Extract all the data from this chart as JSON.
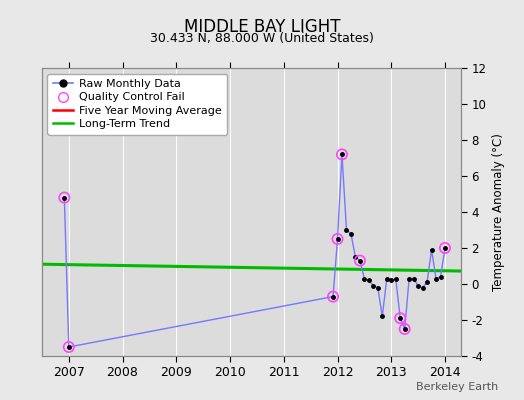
{
  "title": "MIDDLE BAY LIGHT",
  "subtitle": "30.433 N, 88.000 W (United States)",
  "ylabel_right": "Temperature Anomaly (°C)",
  "watermark": "Berkeley Earth",
  "xlim": [
    2006.5,
    2014.3
  ],
  "ylim": [
    -4,
    12
  ],
  "yticks": [
    -4,
    -2,
    0,
    2,
    4,
    6,
    8,
    10,
    12
  ],
  "xticks": [
    2007,
    2008,
    2009,
    2010,
    2011,
    2012,
    2013,
    2014
  ],
  "background_color": "#e8e8e8",
  "plot_background": "#dcdcdc",
  "raw_data_x": [
    2006.917,
    2007.0,
    2011.917,
    2012.0,
    2012.083,
    2012.167,
    2012.25,
    2012.333,
    2012.417,
    2012.5,
    2012.583,
    2012.667,
    2012.75,
    2012.833,
    2012.917,
    2013.0,
    2013.083,
    2013.167,
    2013.25,
    2013.333,
    2013.417,
    2013.5,
    2013.583,
    2013.667,
    2013.75,
    2013.833,
    2013.917,
    2014.0
  ],
  "raw_data_y": [
    4.8,
    -3.5,
    -0.7,
    2.5,
    7.2,
    3.0,
    2.8,
    1.5,
    1.3,
    0.3,
    0.2,
    -0.1,
    -0.2,
    -1.8,
    0.3,
    0.2,
    0.3,
    -1.9,
    -2.5,
    0.3,
    0.3,
    -0.1,
    -0.2,
    0.1,
    1.9,
    0.3,
    0.4,
    2.0
  ],
  "qc_fail_x": [
    2006.917,
    2007.0,
    2011.917,
    2012.0,
    2012.083,
    2012.417,
    2013.167,
    2013.25,
    2014.0
  ],
  "qc_fail_y": [
    4.8,
    -3.5,
    -0.7,
    2.5,
    7.2,
    1.3,
    -1.9,
    -2.5,
    2.0
  ],
  "trend_x": [
    2006.5,
    2014.3
  ],
  "trend_y": [
    1.1,
    0.72
  ],
  "raw_line_color": "#7777ff",
  "raw_marker_color": "#000000",
  "qc_color": "#ff44ff",
  "trend_color": "#00bb00",
  "moving_avg_color": "#ff0000",
  "grid_color": "#ffffff"
}
